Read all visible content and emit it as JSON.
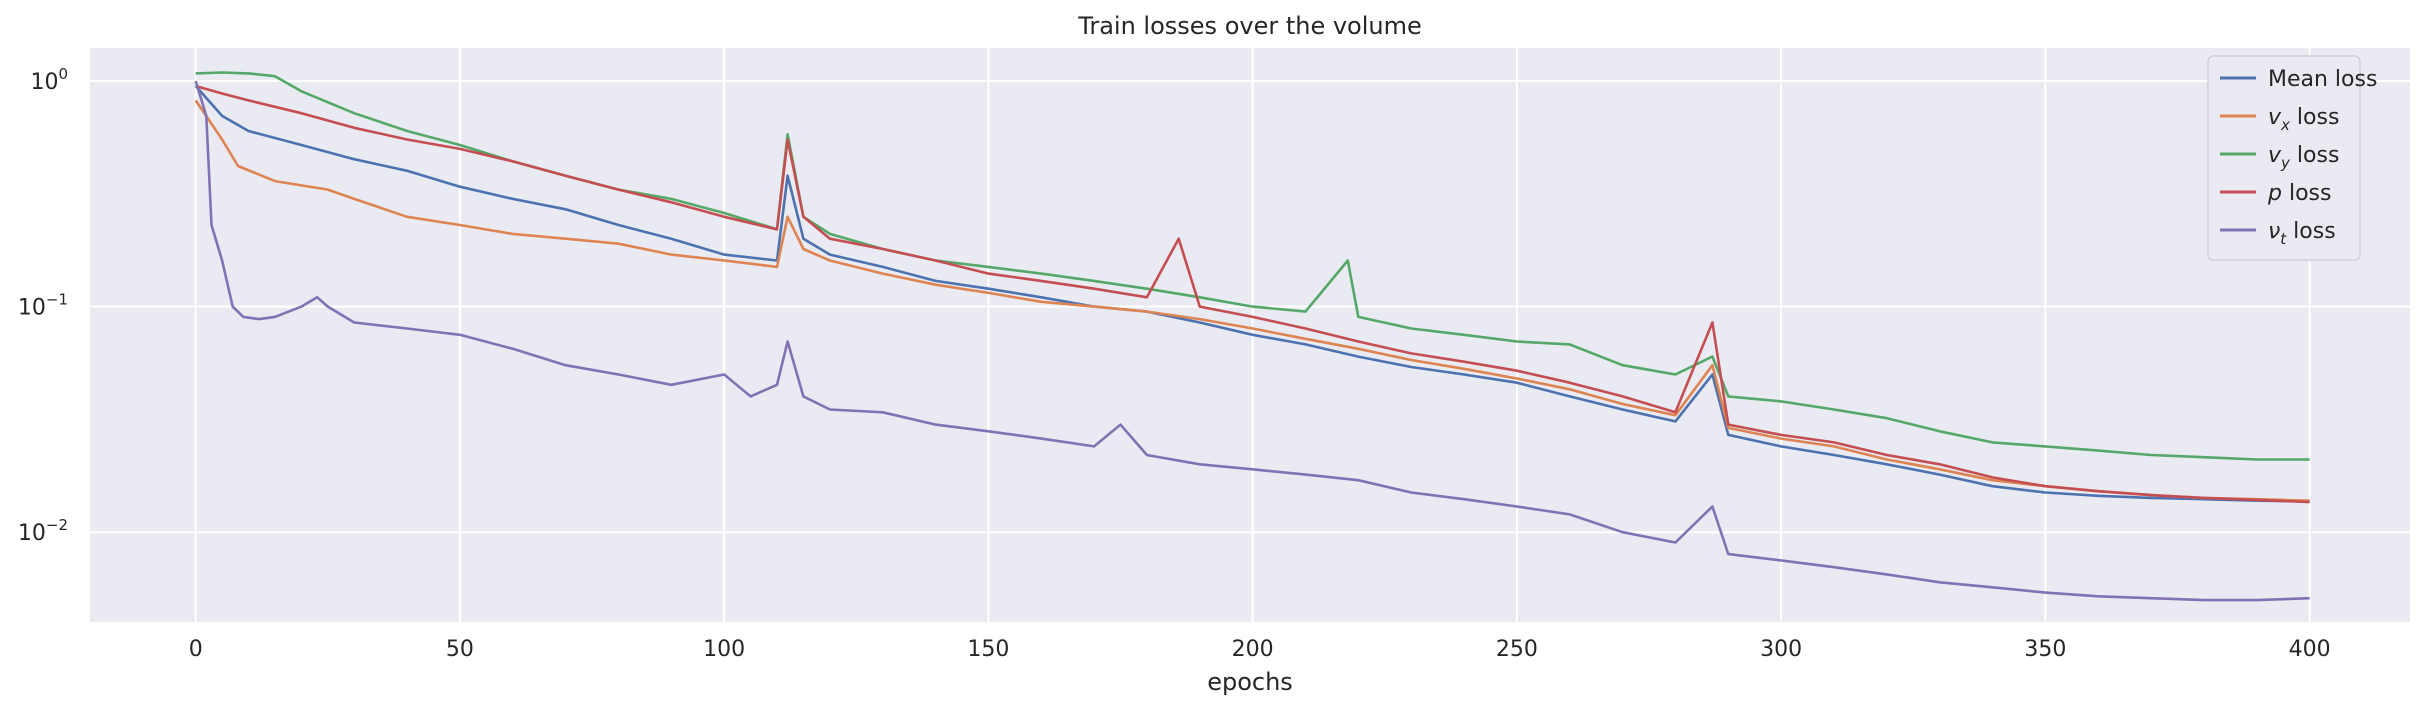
{
  "chart_data": {
    "type": "line",
    "title": "Train losses over the volume",
    "xlabel": "epochs",
    "ylabel": "",
    "yscale": "log",
    "xlim": [
      -20,
      419
    ],
    "ylim": [
      0.004,
      1.4
    ],
    "xticks": [
      0,
      50,
      100,
      150,
      200,
      250,
      300,
      350,
      400
    ],
    "xtick_labels": [
      "0",
      "50",
      "100",
      "150",
      "200",
      "250",
      "300",
      "350",
      "400"
    ],
    "yticks": [
      0.01,
      0.1,
      1
    ],
    "ytick_labels": [
      {
        "base": "10",
        "exp": "−2"
      },
      {
        "base": "10",
        "exp": "−1"
      },
      {
        "base": "10",
        "exp": "0"
      }
    ],
    "grid": true,
    "legend_position": "top-right",
    "background": "#eaeaf2",
    "series": [
      {
        "name": "Mean loss",
        "legend": {
          "sym": "",
          "sub": "",
          "suffix": "Mean loss"
        },
        "color": "#4c72b0",
        "points": [
          [
            0,
            0.95
          ],
          [
            5,
            0.7
          ],
          [
            10,
            0.6
          ],
          [
            20,
            0.52
          ],
          [
            30,
            0.45
          ],
          [
            40,
            0.4
          ],
          [
            50,
            0.34
          ],
          [
            60,
            0.3
          ],
          [
            70,
            0.27
          ],
          [
            80,
            0.23
          ],
          [
            90,
            0.2
          ],
          [
            100,
            0.17
          ],
          [
            110,
            0.16
          ],
          [
            112,
            0.38
          ],
          [
            115,
            0.2
          ],
          [
            120,
            0.17
          ],
          [
            130,
            0.15
          ],
          [
            140,
            0.13
          ],
          [
            150,
            0.12
          ],
          [
            160,
            0.11
          ],
          [
            170,
            0.1
          ],
          [
            180,
            0.095
          ],
          [
            190,
            0.085
          ],
          [
            200,
            0.075
          ],
          [
            210,
            0.068
          ],
          [
            220,
            0.06
          ],
          [
            230,
            0.054
          ],
          [
            240,
            0.05
          ],
          [
            250,
            0.046
          ],
          [
            260,
            0.04
          ],
          [
            270,
            0.035
          ],
          [
            280,
            0.031
          ],
          [
            287,
            0.05
          ],
          [
            290,
            0.027
          ],
          [
            300,
            0.024
          ],
          [
            310,
            0.022
          ],
          [
            320,
            0.02
          ],
          [
            330,
            0.018
          ],
          [
            340,
            0.016
          ],
          [
            350,
            0.015
          ],
          [
            360,
            0.0145
          ],
          [
            370,
            0.0142
          ],
          [
            380,
            0.014
          ],
          [
            390,
            0.0138
          ],
          [
            400,
            0.0137
          ]
        ]
      },
      {
        "name": "v_x loss",
        "legend": {
          "sym": "v",
          "sub": "x",
          "suffix": " loss"
        },
        "color": "#dd8452",
        "points": [
          [
            0,
            0.82
          ],
          [
            5,
            0.55
          ],
          [
            8,
            0.42
          ],
          [
            15,
            0.36
          ],
          [
            25,
            0.33
          ],
          [
            30,
            0.3
          ],
          [
            40,
            0.25
          ],
          [
            50,
            0.23
          ],
          [
            60,
            0.21
          ],
          [
            70,
            0.2
          ],
          [
            80,
            0.19
          ],
          [
            90,
            0.17
          ],
          [
            100,
            0.16
          ],
          [
            110,
            0.15
          ],
          [
            112,
            0.25
          ],
          [
            115,
            0.18
          ],
          [
            120,
            0.16
          ],
          [
            130,
            0.14
          ],
          [
            140,
            0.125
          ],
          [
            150,
            0.115
          ],
          [
            160,
            0.105
          ],
          [
            170,
            0.1
          ],
          [
            180,
            0.095
          ],
          [
            190,
            0.088
          ],
          [
            200,
            0.08
          ],
          [
            210,
            0.072
          ],
          [
            220,
            0.065
          ],
          [
            230,
            0.058
          ],
          [
            240,
            0.053
          ],
          [
            250,
            0.048
          ],
          [
            260,
            0.043
          ],
          [
            270,
            0.037
          ],
          [
            280,
            0.033
          ],
          [
            287,
            0.055
          ],
          [
            290,
            0.029
          ],
          [
            300,
            0.026
          ],
          [
            310,
            0.024
          ],
          [
            320,
            0.021
          ],
          [
            330,
            0.019
          ],
          [
            340,
            0.017
          ],
          [
            350,
            0.016
          ],
          [
            360,
            0.0152
          ],
          [
            370,
            0.0146
          ],
          [
            380,
            0.0142
          ],
          [
            390,
            0.014
          ],
          [
            400,
            0.0138
          ]
        ]
      },
      {
        "name": "v_y loss",
        "legend": {
          "sym": "v",
          "sub": "y",
          "suffix": " loss"
        },
        "color": "#55a868",
        "points": [
          [
            0,
            1.08
          ],
          [
            5,
            1.09
          ],
          [
            10,
            1.08
          ],
          [
            15,
            1.05
          ],
          [
            20,
            0.9
          ],
          [
            30,
            0.72
          ],
          [
            40,
            0.6
          ],
          [
            50,
            0.52
          ],
          [
            60,
            0.44
          ],
          [
            70,
            0.38
          ],
          [
            80,
            0.33
          ],
          [
            90,
            0.3
          ],
          [
            100,
            0.26
          ],
          [
            110,
            0.22
          ],
          [
            112,
            0.58
          ],
          [
            115,
            0.25
          ],
          [
            120,
            0.21
          ],
          [
            130,
            0.18
          ],
          [
            140,
            0.16
          ],
          [
            150,
            0.15
          ],
          [
            160,
            0.14
          ],
          [
            170,
            0.13
          ],
          [
            180,
            0.12
          ],
          [
            190,
            0.11
          ],
          [
            200,
            0.1
          ],
          [
            210,
            0.095
          ],
          [
            218,
            0.16
          ],
          [
            220,
            0.09
          ],
          [
            230,
            0.08
          ],
          [
            240,
            0.075
          ],
          [
            250,
            0.07
          ],
          [
            260,
            0.068
          ],
          [
            270,
            0.055
          ],
          [
            280,
            0.05
          ],
          [
            287,
            0.06
          ],
          [
            290,
            0.04
          ],
          [
            300,
            0.038
          ],
          [
            310,
            0.035
          ],
          [
            320,
            0.032
          ],
          [
            330,
            0.028
          ],
          [
            340,
            0.025
          ],
          [
            350,
            0.024
          ],
          [
            360,
            0.023
          ],
          [
            370,
            0.022
          ],
          [
            380,
            0.0215
          ],
          [
            390,
            0.021
          ],
          [
            400,
            0.021
          ]
        ]
      },
      {
        "name": "p loss",
        "legend": {
          "sym": "p",
          "sub": "",
          "suffix": " loss"
        },
        "color": "#c44e52",
        "points": [
          [
            0,
            0.95
          ],
          [
            5,
            0.88
          ],
          [
            10,
            0.82
          ],
          [
            20,
            0.72
          ],
          [
            30,
            0.62
          ],
          [
            40,
            0.55
          ],
          [
            50,
            0.5
          ],
          [
            60,
            0.44
          ],
          [
            70,
            0.38
          ],
          [
            80,
            0.33
          ],
          [
            90,
            0.29
          ],
          [
            100,
            0.25
          ],
          [
            110,
            0.22
          ],
          [
            112,
            0.55
          ],
          [
            115,
            0.25
          ],
          [
            120,
            0.2
          ],
          [
            130,
            0.18
          ],
          [
            140,
            0.16
          ],
          [
            150,
            0.14
          ],
          [
            160,
            0.13
          ],
          [
            170,
            0.12
          ],
          [
            180,
            0.11
          ],
          [
            186,
            0.2
          ],
          [
            190,
            0.1
          ],
          [
            200,
            0.09
          ],
          [
            210,
            0.08
          ],
          [
            220,
            0.07
          ],
          [
            230,
            0.062
          ],
          [
            240,
            0.057
          ],
          [
            250,
            0.052
          ],
          [
            260,
            0.046
          ],
          [
            270,
            0.04
          ],
          [
            280,
            0.034
          ],
          [
            287,
            0.085
          ],
          [
            290,
            0.03
          ],
          [
            300,
            0.027
          ],
          [
            310,
            0.025
          ],
          [
            320,
            0.022
          ],
          [
            330,
            0.02
          ],
          [
            340,
            0.0175
          ],
          [
            350,
            0.016
          ],
          [
            360,
            0.0152
          ],
          [
            370,
            0.0146
          ],
          [
            380,
            0.0142
          ],
          [
            390,
            0.0139
          ],
          [
            400,
            0.0136
          ]
        ]
      },
      {
        "name": "ν_t loss",
        "legend": {
          "sym": "ν",
          "sub": "t",
          "suffix": " loss"
        },
        "color": "#8172b3",
        "points": [
          [
            0,
            1.0
          ],
          [
            2,
            0.7
          ],
          [
            3,
            0.23
          ],
          [
            5,
            0.16
          ],
          [
            7,
            0.1
          ],
          [
            9,
            0.09
          ],
          [
            12,
            0.088
          ],
          [
            15,
            0.09
          ],
          [
            20,
            0.1
          ],
          [
            23,
            0.11
          ],
          [
            25,
            0.1
          ],
          [
            30,
            0.085
          ],
          [
            40,
            0.08
          ],
          [
            50,
            0.075
          ],
          [
            60,
            0.065
          ],
          [
            70,
            0.055
          ],
          [
            80,
            0.05
          ],
          [
            90,
            0.045
          ],
          [
            100,
            0.05
          ],
          [
            105,
            0.04
          ],
          [
            110,
            0.045
          ],
          [
            112,
            0.07
          ],
          [
            115,
            0.04
          ],
          [
            120,
            0.035
          ],
          [
            130,
            0.034
          ],
          [
            140,
            0.03
          ],
          [
            150,
            0.028
          ],
          [
            160,
            0.026
          ],
          [
            170,
            0.024
          ],
          [
            175,
            0.03
          ],
          [
            180,
            0.022
          ],
          [
            190,
            0.02
          ],
          [
            200,
            0.019
          ],
          [
            210,
            0.018
          ],
          [
            220,
            0.017
          ],
          [
            230,
            0.015
          ],
          [
            240,
            0.014
          ],
          [
            250,
            0.013
          ],
          [
            260,
            0.012
          ],
          [
            270,
            0.01
          ],
          [
            280,
            0.009
          ],
          [
            287,
            0.013
          ],
          [
            290,
            0.008
          ],
          [
            300,
            0.0075
          ],
          [
            310,
            0.007
          ],
          [
            320,
            0.0065
          ],
          [
            330,
            0.006
          ],
          [
            340,
            0.0057
          ],
          [
            350,
            0.0054
          ],
          [
            360,
            0.0052
          ],
          [
            370,
            0.0051
          ],
          [
            380,
            0.005
          ],
          [
            390,
            0.005
          ],
          [
            400,
            0.0051
          ]
        ]
      }
    ]
  }
}
